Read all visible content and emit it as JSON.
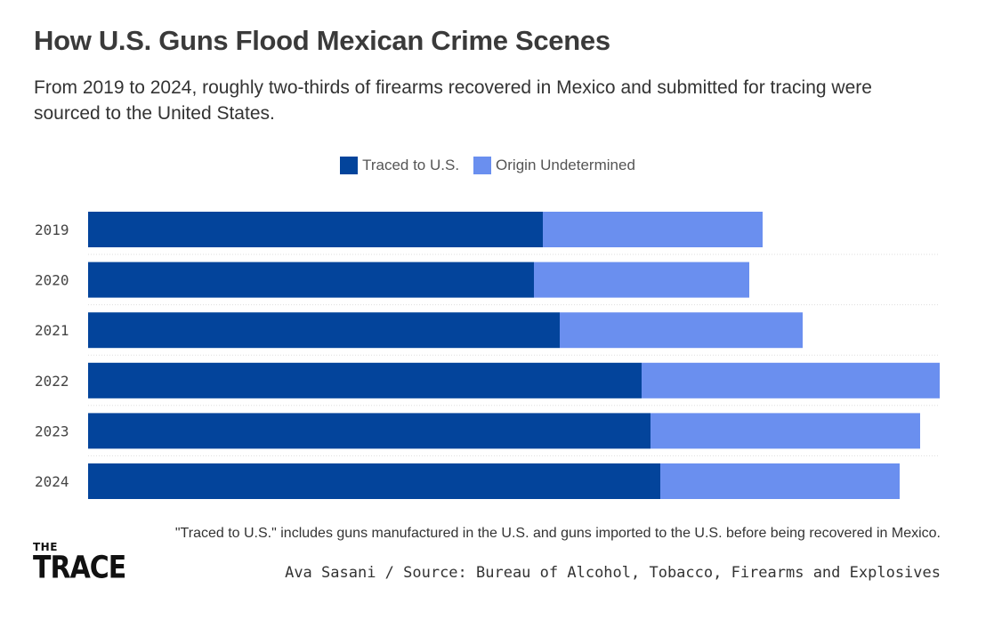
{
  "title": "How U.S. Guns Flood Mexican Crime Scenes",
  "subtitle": "From 2019 to 2024, roughly two-thirds of firearms recovered in Mexico and submitted for tracing were sourced to the United States.",
  "legend": [
    {
      "label": "Traced to U.S.",
      "color": "#03449b"
    },
    {
      "label": "Origin Undetermined",
      "color": "#6a8fef"
    }
  ],
  "note": "\"Traced to U.S.\" includes guns manufactured in the U.S. and guns imported to the U.S. before being recovered in Mexico.",
  "source": "Ava Sasani / Source: Bureau of Alcohol, Tobacco, Firearms and Explosives",
  "logo": {
    "top": "THE",
    "bottom": "TRACE"
  },
  "chart_data": {
    "type": "bar",
    "orientation": "horizontal",
    "stacked": true,
    "categories": [
      "2019",
      "2020",
      "2021",
      "2022",
      "2023",
      "2024"
    ],
    "series": [
      {
        "name": "Traced to U.S.",
        "color": "#03449b",
        "values": [
          51.1,
          50.1,
          53.0,
          62.2,
          63.2,
          64.3
        ]
      },
      {
        "name": "Origin Undetermined",
        "color": "#6a8fef",
        "values": [
          24.7,
          24.2,
          27.3,
          33.5,
          30.3,
          26.9
        ]
      }
    ],
    "xlim": [
      0,
      95.7
    ],
    "grid": false,
    "legend_position": "top-center"
  }
}
